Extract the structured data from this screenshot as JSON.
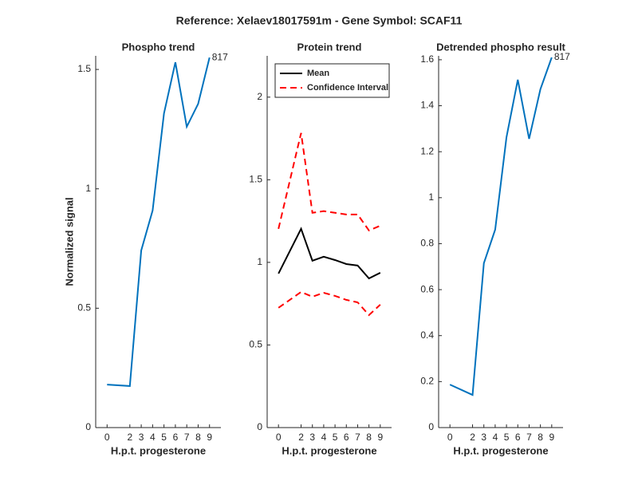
{
  "title": "Reference:  Xelaev18017591m - Gene Symbol:  SCAF11",
  "chart_data": [
    {
      "type": "line",
      "title": "Phospho trend",
      "xlabel": "H.p.t. progesterone",
      "ylabel": "Normalized signal",
      "x": [
        0,
        2,
        3,
        4,
        5,
        6,
        7,
        8,
        9
      ],
      "xlim": [
        -1,
        10
      ],
      "xticks": [
        0,
        2,
        3,
        4,
        5,
        6,
        7,
        8,
        9
      ],
      "ylim": [
        0,
        1.557
      ],
      "yticks": [
        0,
        0.5,
        1,
        1.5
      ],
      "annotation": "817",
      "series": [
        {
          "color": "#0072bd",
          "values": [
            0.18,
            0.174,
            0.742,
            0.909,
            1.316,
            1.53,
            1.26,
            1.356,
            1.55
          ]
        }
      ]
    },
    {
      "type": "line",
      "title": "Protein trend",
      "xlabel": "H.p.t. progesterone",
      "x": [
        0,
        2,
        3,
        4,
        5,
        6,
        7,
        8,
        9
      ],
      "xlim": [
        -1,
        10
      ],
      "xticks": [
        0,
        2,
        3,
        4,
        5,
        6,
        7,
        8,
        9
      ],
      "ylim": [
        0,
        2.25
      ],
      "yticks": [
        0,
        0.5,
        1,
        1.5,
        2
      ],
      "legend": "northwest",
      "series": [
        {
          "name": "Mean",
          "color": "#000000",
          "values": [
            0.932,
            1.203,
            1.01,
            1.034,
            1.014,
            0.99,
            0.981,
            0.903,
            0.937
          ]
        },
        {
          "name": "Confidence Interval",
          "color": "#ff0000",
          "dashed": true,
          "upper": [
            1.203,
            1.783,
            1.3,
            1.31,
            1.3,
            1.29,
            1.29,
            1.193,
            1.222
          ],
          "lower": [
            0.725,
            0.821,
            0.792,
            0.816,
            0.797,
            0.773,
            0.758,
            0.681,
            0.744
          ]
        }
      ]
    },
    {
      "type": "line",
      "title": "Detrended phospho result",
      "xlabel": "H.p.t. progesterone",
      "x": [
        0,
        2,
        3,
        4,
        5,
        6,
        7,
        8,
        9
      ],
      "xlim": [
        -1,
        10
      ],
      "xticks": [
        0,
        2,
        3,
        4,
        5,
        6,
        7,
        8,
        9
      ],
      "ylim": [
        0,
        1.617
      ],
      "yticks": [
        0,
        0.2,
        0.4,
        0.6,
        0.8,
        1,
        1.2,
        1.4,
        1.6
      ],
      "annotation": "817",
      "series": [
        {
          "color": "#0072bd",
          "values": [
            0.187,
            0.142,
            0.715,
            0.861,
            1.263,
            1.513,
            1.256,
            1.472,
            1.61
          ]
        }
      ]
    }
  ]
}
